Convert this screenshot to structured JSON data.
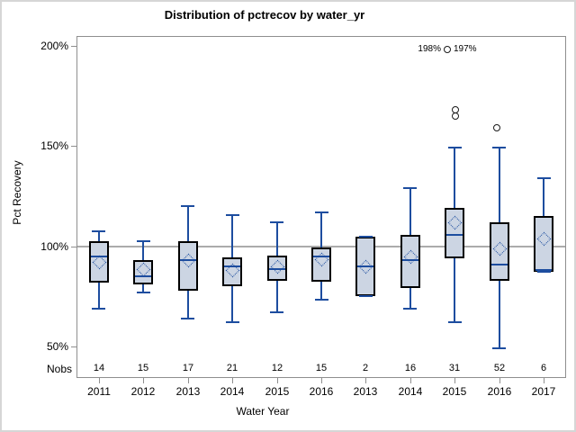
{
  "chart_data": {
    "type": "boxplot",
    "title": "Distribution of pctrecov by water_yr",
    "xlabel": "Water Year",
    "ylabel": "Pct Recovery",
    "nobs_row_label": "Nobs",
    "y_ticks": [
      {
        "label": "200%",
        "value": 200
      },
      {
        "label": "150%",
        "value": 150
      },
      {
        "label": "100%",
        "value": 100
      },
      {
        "label": "50%",
        "value": 50
      }
    ],
    "ylim": [
      34,
      205
    ],
    "reference_line_value": 100,
    "legend": "none",
    "boxes": [
      {
        "category": "2011",
        "nobs": "14",
        "low": 69,
        "q1": 82,
        "median": 95,
        "q3": 102.5,
        "high": 107.5,
        "mean": 92,
        "outliers": []
      },
      {
        "category": "2012",
        "nobs": "15",
        "low": 77,
        "q1": 81,
        "median": 85,
        "q3": 93,
        "high": 102.5,
        "mean": 88.5,
        "outliers": []
      },
      {
        "category": "2013",
        "nobs": "17",
        "low": 64,
        "q1": 78,
        "median": 93,
        "q3": 102.5,
        "high": 120,
        "mean": 93,
        "outliers": []
      },
      {
        "category": "2014",
        "nobs": "21",
        "low": 62,
        "q1": 80,
        "median": 90,
        "q3": 94.5,
        "high": 115.5,
        "mean": 88,
        "outliers": []
      },
      {
        "category": "2015",
        "nobs": "12",
        "low": 67,
        "q1": 83,
        "median": 88.5,
        "q3": 95.5,
        "high": 112,
        "mean": 90,
        "outliers": []
      },
      {
        "category": "2016",
        "nobs": "15",
        "low": 73.5,
        "q1": 82.5,
        "median": 95,
        "q3": 99.5,
        "high": 117,
        "mean": 93.5,
        "outliers": []
      },
      {
        "category": "2013",
        "nobs": "2",
        "low": 75,
        "q1": 75,
        "median": 90,
        "q3": 104.5,
        "high": 104.5,
        "mean": 90,
        "outliers": []
      },
      {
        "category": "2014",
        "nobs": "16",
        "low": 69,
        "q1": 79,
        "median": 93,
        "q3": 105.5,
        "high": 129,
        "mean": 95,
        "outliers": []
      },
      {
        "category": "2015",
        "nobs": "31",
        "low": 62,
        "q1": 94,
        "median": 105.5,
        "q3": 119,
        "high": 149,
        "mean": 112,
        "outliers": [
          {
            "value": 168,
            "dx": 1
          },
          {
            "value": 165,
            "dx": 1
          },
          {
            "value": 198,
            "dx": -8,
            "label_left": "198%",
            "label_right": "197%"
          }
        ]
      },
      {
        "category": "2016",
        "nobs": "52",
        "low": 49,
        "q1": 83,
        "median": 91,
        "q3": 112,
        "high": 149,
        "mean": 99,
        "outliers": [
          {
            "value": 159,
            "dx": -3
          }
        ]
      },
      {
        "category": "2017",
        "nobs": "6",
        "low": 87,
        "q1": 87,
        "median": 88,
        "q3": 115,
        "high": 134,
        "mean": 104,
        "outliers": []
      }
    ]
  },
  "colors": {
    "box_fill": "#ccd5e3",
    "box_border": "#000000",
    "line_blue": "#1d4d9f",
    "reference_line": "#ababab",
    "frame_border": "#8f8f8f",
    "outlier": "#1a1a1a",
    "figure_border": "#d6d6d6",
    "text": "#000000"
  }
}
